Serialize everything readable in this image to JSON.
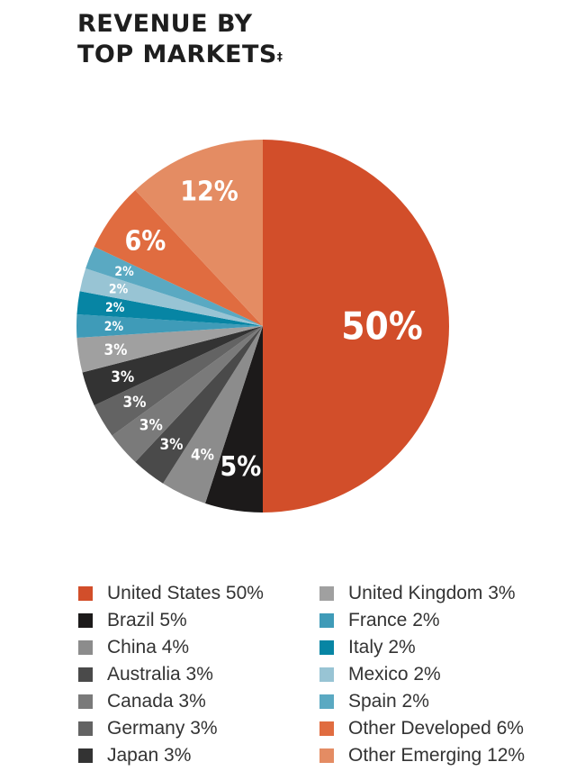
{
  "chart_data": {
    "type": "pie",
    "title": "REVENUE BY TOP MARKETS",
    "title_line1": "REVENUE BY",
    "title_line2": "TOP MARKETS",
    "title_mark": "‡",
    "start": "top",
    "direction": "clockwise",
    "legend_placement": "bottom",
    "slices": [
      {
        "name": "United States",
        "value": 50,
        "label": "50%",
        "legend": "United States 50%",
        "color": "#d24e2a"
      },
      {
        "name": "Brazil",
        "value": 5,
        "label": "5%",
        "legend": "Brazil 5%",
        "color": "#1c1a1a"
      },
      {
        "name": "China",
        "value": 4,
        "label": "4%",
        "legend": "China 4%",
        "color": "#8c8c8c"
      },
      {
        "name": "Australia",
        "value": 3,
        "label": "3%",
        "legend": "Australia 3%",
        "color": "#4a4a4a"
      },
      {
        "name": "Canada",
        "value": 3,
        "label": "3%",
        "legend": "Canada 3%",
        "color": "#7a7a7a"
      },
      {
        "name": "Germany",
        "value": 3,
        "label": "3%",
        "legend": "Germany 3%",
        "color": "#636363"
      },
      {
        "name": "Japan",
        "value": 3,
        "label": "3%",
        "legend": "Japan 3%",
        "color": "#333333"
      },
      {
        "name": "United Kingdom",
        "value": 3,
        "label": "3%",
        "legend": "United Kingdom 3%",
        "color": "#a0a0a0"
      },
      {
        "name": "France",
        "value": 2,
        "label": "2%",
        "legend": "France 2%",
        "color": "#3f9bb8"
      },
      {
        "name": "Italy",
        "value": 2,
        "label": "2%",
        "legend": "Italy 2%",
        "color": "#0785a4"
      },
      {
        "name": "Mexico",
        "value": 2,
        "label": "2%",
        "legend": "Mexico 2%",
        "color": "#98c4d4"
      },
      {
        "name": "Spain",
        "value": 2,
        "label": "2%",
        "legend": "Spain 2%",
        "color": "#5aa9c2"
      },
      {
        "name": "Other Developed",
        "value": 6,
        "label": "6%",
        "legend": "Other Developed 6%",
        "color": "#e06c40"
      },
      {
        "name": "Other Emerging",
        "value": 12,
        "label": "12%",
        "legend": "Other Emerging 12%",
        "color": "#e48c63"
      }
    ]
  }
}
